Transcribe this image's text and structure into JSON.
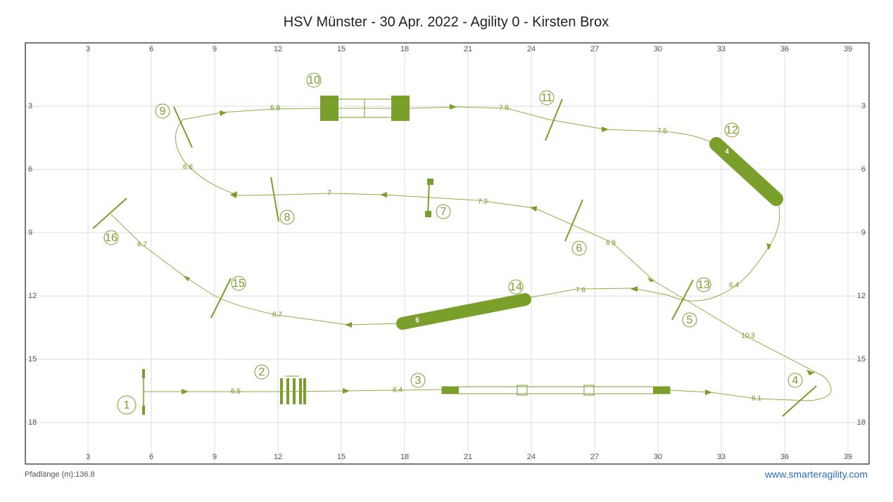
{
  "header": {
    "title": "HSV Münster - 30 Apr. 2022 - Agility 0 - Kirsten Brox"
  },
  "grid": {
    "x_ticks": [
      3,
      6,
      9,
      12,
      15,
      18,
      21,
      24,
      27,
      30,
      33,
      36,
      39
    ],
    "y_ticks": [
      3,
      6,
      9,
      12,
      15,
      18
    ]
  },
  "obstacle_numbers": [
    1,
    2,
    3,
    4,
    5,
    6,
    7,
    8,
    9,
    10,
    11,
    12,
    13,
    14,
    15,
    16
  ],
  "distances": [
    6.5,
    6.4,
    6.1,
    10.3,
    6.4,
    6.9,
    7.3,
    7,
    6.6,
    6.9,
    7.9,
    7.5,
    7.6,
    8.7,
    6.7
  ],
  "tunnel_labels": [
    "4",
    "6"
  ],
  "footer": {
    "path_length": "Pfadlänge (m):136.8",
    "website": "www.smarteragility.com"
  }
}
